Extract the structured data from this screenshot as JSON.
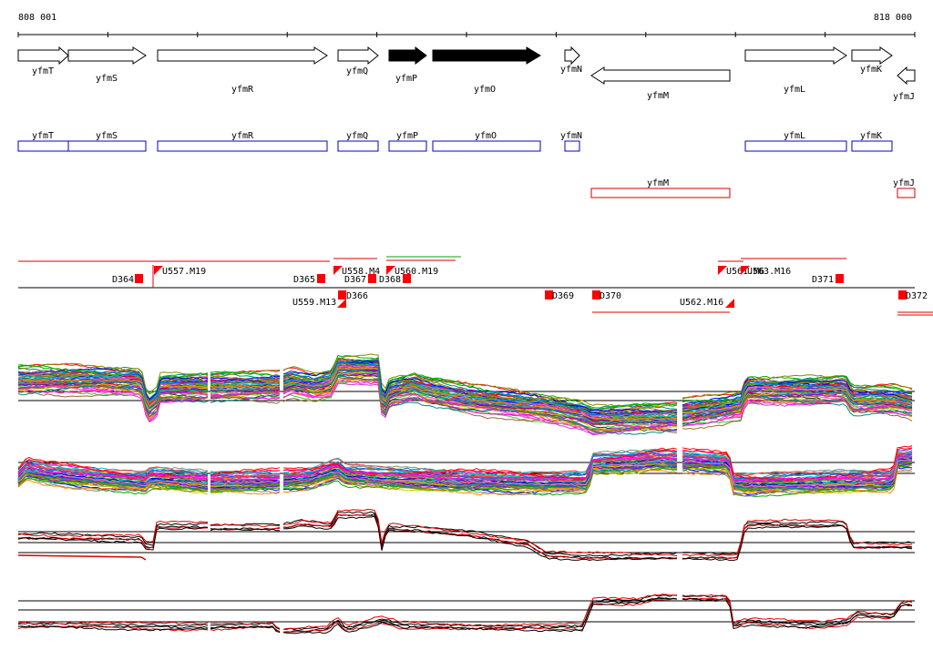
{
  "ruler": {
    "start_label": "808 001",
    "end_label": "818 000"
  },
  "genes_strand": [
    {
      "name": "yfmT",
      "dir": "right",
      "fill": "white"
    },
    {
      "name": "yfmS",
      "dir": "right",
      "fill": "white"
    },
    {
      "name": "yfmR",
      "dir": "right",
      "fill": "white"
    },
    {
      "name": "yfmQ",
      "dir": "right",
      "fill": "white"
    },
    {
      "name": "yfmP",
      "dir": "right",
      "fill": "black"
    },
    {
      "name": "yfmO",
      "dir": "right",
      "fill": "black"
    },
    {
      "name": "yfmN",
      "dir": "right",
      "fill": "white"
    },
    {
      "name": "yfmM",
      "dir": "left",
      "fill": "white"
    },
    {
      "name": "yfmL",
      "dir": "right",
      "fill": "white"
    },
    {
      "name": "yfmK",
      "dir": "right",
      "fill": "white"
    },
    {
      "name": "yfmJ",
      "dir": "left",
      "fill": "white"
    }
  ],
  "genes_forward_boxes": [
    "yfmT",
    "yfmS",
    "yfmR",
    "yfmQ",
    "yfmP",
    "yfmO",
    "yfmN",
    "yfmL",
    "yfmK"
  ],
  "genes_reverse_boxes": [
    "yfmM",
    "yfmJ"
  ],
  "features_upper": [
    "D364",
    "U557.M19",
    "D365",
    "U558.M4",
    "D367",
    "D368",
    "U560.M19",
    "U561.M6",
    "U563.M16",
    "D371"
  ],
  "features_lower": [
    "U559.M13",
    "D366",
    "D369",
    "D370",
    "U562.M16",
    "D372"
  ],
  "colors": {
    "forward_box": "#0000cc",
    "reverse_box": "#cc0000",
    "feature_marker": "#ff0000",
    "trace_black": "#000000",
    "trace_red": "#dd0000"
  }
}
